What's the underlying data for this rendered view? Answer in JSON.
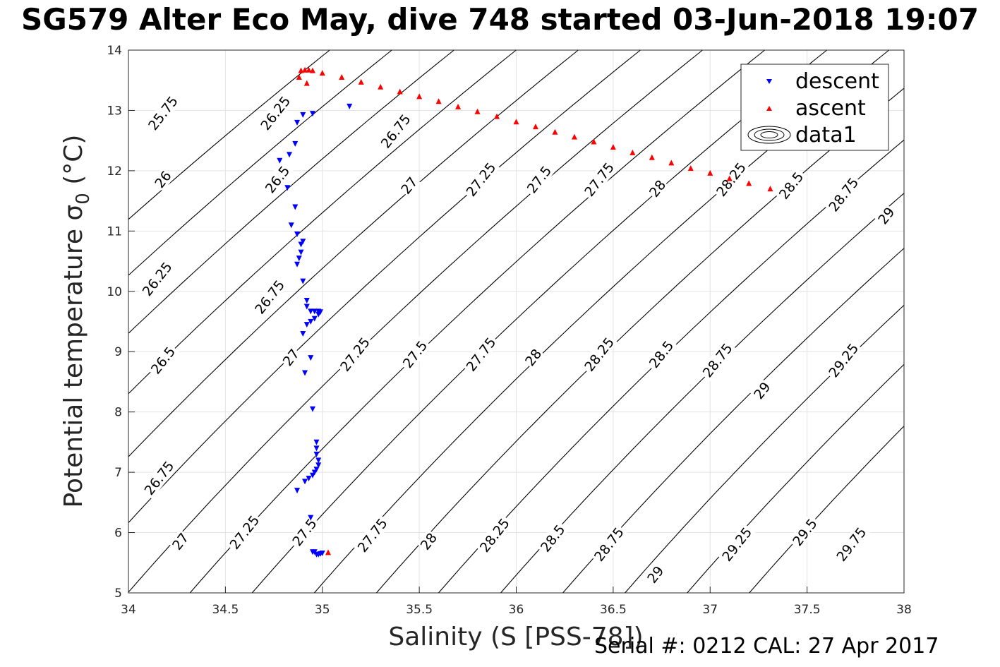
{
  "title": "SG579 Alter Eco May, dive 748 started 03-Jun-2018 19:07",
  "footer": "Serial #: 0212  CAL: 27 Apr 2017",
  "chart_data": {
    "type": "scatter",
    "title": "SG579 Alter Eco May, dive 748 started 03-Jun-2018 19:07",
    "xlabel": "Salinity (S [PSS-78])",
    "ylabel_main": "Potential temperature σ",
    "ylabel_sub": "0",
    "ylabel_unit": " (°C)",
    "xlim": [
      34,
      38
    ],
    "ylim": [
      5,
      14
    ],
    "xticks": [
      34,
      34.5,
      35,
      35.5,
      36,
      36.5,
      37,
      37.5,
      38
    ],
    "xtick_labels": [
      "34",
      "34.5",
      "35",
      "35.5",
      "36",
      "36.5",
      "37",
      "37.5",
      "38"
    ],
    "yticks": [
      5,
      6,
      7,
      8,
      9,
      10,
      11,
      12,
      13,
      14
    ],
    "ytick_labels": [
      "5",
      "6",
      "7",
      "8",
      "9",
      "10",
      "11",
      "12",
      "13",
      "14"
    ],
    "grid": true,
    "legend_position": "top-right",
    "series": [
      {
        "name": "descent",
        "marker": "triangle-down",
        "color": "#0000ff",
        "points": [
          [
            34.9,
            12.93
          ],
          [
            34.95,
            12.95
          ],
          [
            35.14,
            13.07
          ],
          [
            34.87,
            12.8
          ],
          [
            34.86,
            12.45
          ],
          [
            34.83,
            12.27
          ],
          [
            34.78,
            12.17
          ],
          [
            34.82,
            11.72
          ],
          [
            34.86,
            11.4
          ],
          [
            34.84,
            11.1
          ],
          [
            34.87,
            10.95
          ],
          [
            34.9,
            10.83
          ],
          [
            34.89,
            10.78
          ],
          [
            34.89,
            10.65
          ],
          [
            34.88,
            10.55
          ],
          [
            34.87,
            10.45
          ],
          [
            34.9,
            10.17
          ],
          [
            34.92,
            9.85
          ],
          [
            34.92,
            9.75
          ],
          [
            34.94,
            9.67
          ],
          [
            34.96,
            9.67
          ],
          [
            34.98,
            9.67
          ],
          [
            34.99,
            9.66
          ],
          [
            34.98,
            9.62
          ],
          [
            34.96,
            9.55
          ],
          [
            34.94,
            9.5
          ],
          [
            34.92,
            9.45
          ],
          [
            34.9,
            9.3
          ],
          [
            34.91,
            8.65
          ],
          [
            34.94,
            8.9
          ],
          [
            34.95,
            8.05
          ],
          [
            34.97,
            7.5
          ],
          [
            34.97,
            7.4
          ],
          [
            34.97,
            7.3
          ],
          [
            34.98,
            7.2
          ],
          [
            34.98,
            7.12
          ],
          [
            34.97,
            7.05
          ],
          [
            34.96,
            7.0
          ],
          [
            34.95,
            6.95
          ],
          [
            34.93,
            6.9
          ],
          [
            34.91,
            6.85
          ],
          [
            34.87,
            6.7
          ],
          [
            34.94,
            6.25
          ],
          [
            34.96,
            5.68
          ],
          [
            34.97,
            5.64
          ],
          [
            34.98,
            5.64
          ],
          [
            34.99,
            5.65
          ],
          [
            35.0,
            5.66
          ],
          [
            34.95,
            5.68
          ]
        ]
      },
      {
        "name": "ascent",
        "marker": "triangle-up",
        "color": "#ff0000",
        "points": [
          [
            34.89,
            13.66
          ],
          [
            34.91,
            13.67
          ],
          [
            34.93,
            13.67
          ],
          [
            34.95,
            13.66
          ],
          [
            34.88,
            13.55
          ],
          [
            34.92,
            13.45
          ],
          [
            35.03,
            5.67
          ],
          [
            35.0,
            13.62
          ],
          [
            35.1,
            13.55
          ],
          [
            35.2,
            13.47
          ],
          [
            35.3,
            13.39
          ],
          [
            35.4,
            13.31
          ],
          [
            35.5,
            13.23
          ],
          [
            35.6,
            13.15
          ],
          [
            35.7,
            13.06
          ],
          [
            35.8,
            12.98
          ],
          [
            35.9,
            12.9
          ],
          [
            36.0,
            12.81
          ],
          [
            36.1,
            12.73
          ],
          [
            36.2,
            12.64
          ],
          [
            36.3,
            12.56
          ],
          [
            36.4,
            12.48
          ],
          [
            36.5,
            12.39
          ],
          [
            36.6,
            12.3
          ],
          [
            36.7,
            12.22
          ],
          [
            36.8,
            12.13
          ],
          [
            36.9,
            12.04
          ],
          [
            37.0,
            11.96
          ],
          [
            37.1,
            11.87
          ],
          [
            37.2,
            11.79
          ],
          [
            37.31,
            11.7
          ]
        ]
      },
      {
        "name": "data1",
        "marker": "contour",
        "color": "#000000",
        "levels": [
          25.75,
          26,
          26.25,
          26.5,
          26.75,
          27,
          27.25,
          27.5,
          27.75,
          28,
          28.25,
          28.5,
          28.75,
          29,
          29.25,
          29.5,
          29.75
        ],
        "contour_labels": [
          {
            "text": "25.75",
            "at": [
              34.18,
              12.95
            ]
          },
          {
            "text": "26",
            "at": [
              34.18,
              11.85
            ]
          },
          {
            "text": "26.25",
            "at": [
              34.15,
              10.2
            ]
          },
          {
            "text": "26.5",
            "at": [
              34.18,
              8.85
            ]
          },
          {
            "text": "26.75",
            "at": [
              34.16,
              6.9
            ]
          },
          {
            "text": "27",
            "at": [
              34.27,
              5.85
            ]
          },
          {
            "text": "26.25",
            "at": [
              34.76,
              12.95
            ]
          },
          {
            "text": "26.5",
            "at": [
              34.77,
              11.85
            ]
          },
          {
            "text": "26.75",
            "at": [
              34.73,
              9.9
            ]
          },
          {
            "text": "27",
            "at": [
              34.84,
              8.9
            ]
          },
          {
            "text": "27.25",
            "at": [
              34.6,
              6.0
            ]
          },
          {
            "text": "27.5",
            "at": [
              34.91,
              6.0
            ]
          },
          {
            "text": "26.75",
            "at": [
              35.38,
              12.65
            ]
          },
          {
            "text": "27",
            "at": [
              35.45,
              11.75
            ]
          },
          {
            "text": "27.25",
            "at": [
              35.17,
              8.95
            ]
          },
          {
            "text": "27.5",
            "at": [
              35.48,
              8.95
            ]
          },
          {
            "text": "27.75",
            "at": [
              35.26,
              5.95
            ]
          },
          {
            "text": "27.25",
            "at": [
              35.82,
              11.85
            ]
          },
          {
            "text": "27.5",
            "at": [
              36.12,
              11.85
            ]
          },
          {
            "text": "27.75",
            "at": [
              36.43,
              11.85
            ]
          },
          {
            "text": "28",
            "at": [
              36.73,
              11.7
            ]
          },
          {
            "text": "28.25",
            "at": [
              37.11,
              11.85
            ]
          },
          {
            "text": "28.5",
            "at": [
              37.42,
              11.75
            ]
          },
          {
            "text": "28.75",
            "at": [
              37.69,
              11.6
            ]
          },
          {
            "text": "29",
            "at": [
              37.91,
              11.25
            ]
          },
          {
            "text": "27.75",
            "at": [
              35.82,
              8.95
            ]
          },
          {
            "text": "28",
            "at": [
              36.09,
              8.9
            ]
          },
          {
            "text": "28.25",
            "at": [
              36.43,
              8.95
            ]
          },
          {
            "text": "28.5",
            "at": [
              36.75,
              8.95
            ]
          },
          {
            "text": "28.75",
            "at": [
              37.04,
              8.85
            ]
          },
          {
            "text": "29",
            "at": [
              37.27,
              8.35
            ]
          },
          {
            "text": "29.25",
            "at": [
              37.69,
              8.85
            ]
          },
          {
            "text": "28",
            "at": [
              35.55,
              5.85
            ]
          },
          {
            "text": "28.25",
            "at": [
              35.89,
              5.95
            ]
          },
          {
            "text": "28.5",
            "at": [
              36.19,
              5.9
            ]
          },
          {
            "text": "28.75",
            "at": [
              36.48,
              5.8
            ]
          },
          {
            "text": "29",
            "at": [
              36.72,
              5.3
            ]
          },
          {
            "text": "29.25",
            "at": [
              37.14,
              5.8
            ]
          },
          {
            "text": "29.5",
            "at": [
              37.49,
              6.0
            ]
          },
          {
            "text": "29.75",
            "at": [
              37.73,
              5.8
            ]
          }
        ]
      }
    ]
  }
}
